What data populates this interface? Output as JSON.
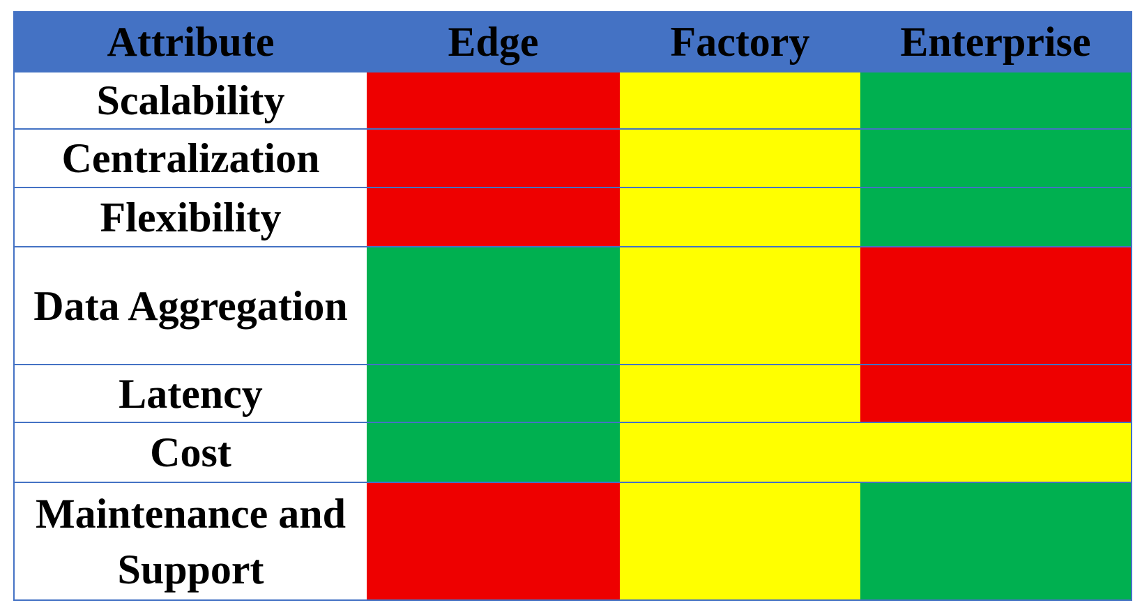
{
  "header_color": "#4472c4",
  "table": {
    "columns": [
      "Attribute",
      "Edge",
      "Factory",
      "Enterprise"
    ],
    "rows": [
      {
        "label": "Scalability",
        "colors": [
          "#ee0000",
          "#ffff00",
          "#00b050"
        ]
      },
      {
        "label": "Centralization",
        "colors": [
          "#ee0000",
          "#ffff00",
          "#00b050"
        ]
      },
      {
        "label": "Flexibility",
        "colors": [
          "#ee0000",
          "#ffff00",
          "#00b050"
        ]
      },
      {
        "label": "Data Aggregation",
        "colors": [
          "#00b050",
          "#ffff00",
          "#ee0000"
        ]
      },
      {
        "label": "Latency",
        "colors": [
          "#00b050",
          "#ffff00",
          "#ee0000"
        ]
      },
      {
        "label": "Cost",
        "colors": [
          "#00b050",
          "#ffff00",
          "#ffff00"
        ]
      },
      {
        "label": "Maintenance and Support",
        "colors": [
          "#ee0000",
          "#ffff00",
          "#00b050"
        ]
      }
    ]
  }
}
